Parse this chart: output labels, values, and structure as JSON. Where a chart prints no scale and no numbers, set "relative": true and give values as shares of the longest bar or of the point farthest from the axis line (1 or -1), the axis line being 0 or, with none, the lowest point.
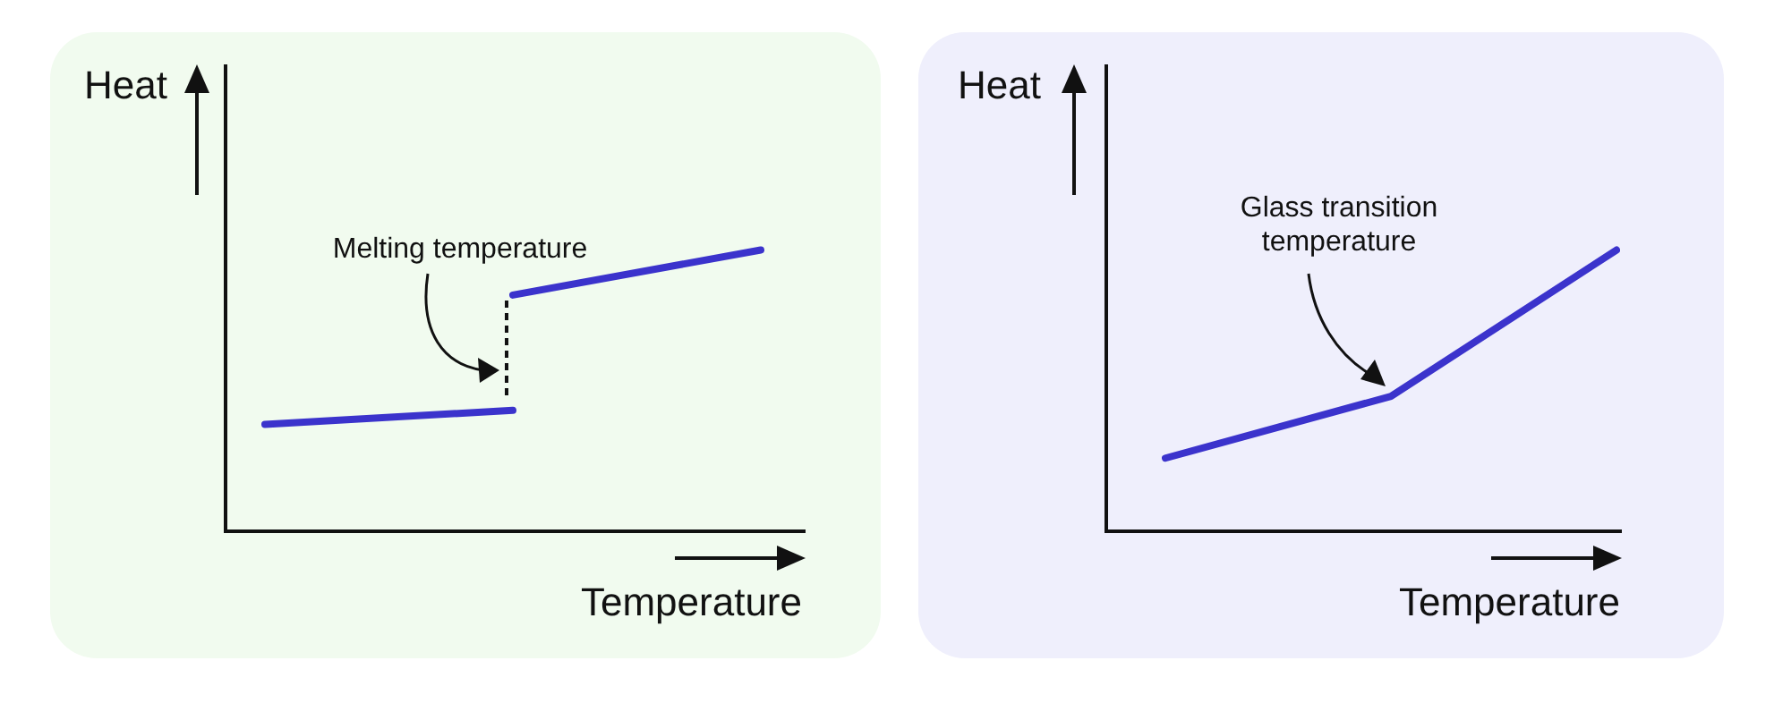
{
  "chart_data": [
    {
      "type": "line",
      "relative": true,
      "xlabel": "Temperature",
      "ylabel": "Heat",
      "categories": [
        null,
        null,
        null
      ],
      "marker": "none",
      "legend": false,
      "annotations": [
        "Melting temperature"
      ],
      "series": [
        {
          "color": "#3b33cc",
          "values": [
            0.38,
            0.43,
            null
          ]
        },
        {
          "color": "#3b33cc",
          "values": [
            null,
            0.84,
            1
          ]
        }
      ]
    },
    {
      "type": "line",
      "relative": true,
      "xlabel": "Temperature",
      "ylabel": "Heat",
      "categories": [
        null,
        null,
        null
      ],
      "marker": "none",
      "legend": false,
      "annotations": [
        "Glass transition temperature"
      ],
      "series": [
        {
          "color": "#3b33cc",
          "values": [
            0.26,
            0.48,
            1
          ]
        }
      ]
    }
  ]
}
